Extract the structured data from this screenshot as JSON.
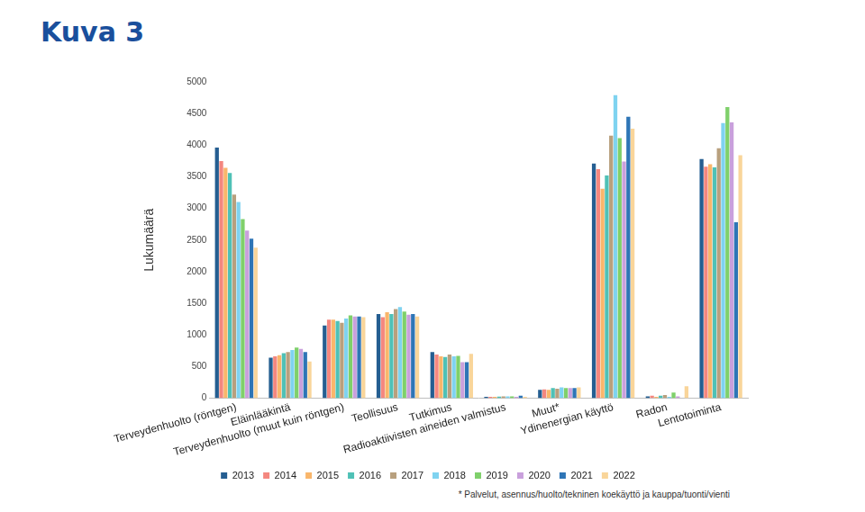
{
  "chart_data": {
    "type": "bar",
    "title": "Kuva 3",
    "y_label": "Lukumäärä",
    "annotation": "* Palvelut, asennus/huolto/tekninen koekäyttö ja kauppa/tuonti/vienti",
    "categories": [
      "Terveydenhuolto (röntgen)",
      "Eläinlääkintä",
      "Terveydenhuolto (muut kuin röntgen)",
      "Teollisuus",
      "Tutkimus",
      "Radioaktiivisten aineiden valmistus",
      "Muut*",
      "Ydinenergian käyttö",
      "Radon",
      "Lentotoiminta"
    ],
    "series": [
      {
        "name": "2013",
        "color": "#255e91",
        "values": [
          3960,
          640,
          1150,
          1330,
          730,
          20,
          130,
          3710,
          30,
          3780
        ]
      },
      {
        "name": "2014",
        "color": "#f4877f",
        "values": [
          3750,
          660,
          1240,
          1280,
          690,
          20,
          140,
          3620,
          40,
          3660
        ]
      },
      {
        "name": "2015",
        "color": "#f9b66b",
        "values": [
          3640,
          680,
          1240,
          1360,
          660,
          20,
          130,
          3310,
          20,
          3700
        ]
      },
      {
        "name": "2016",
        "color": "#4fc1b6",
        "values": [
          3560,
          710,
          1220,
          1330,
          650,
          25,
          160,
          3520,
          40,
          3650
        ]
      },
      {
        "name": "2017",
        "color": "#b8a07e",
        "values": [
          3220,
          730,
          1190,
          1410,
          690,
          30,
          150,
          4150,
          50,
          3950
        ]
      },
      {
        "name": "2018",
        "color": "#7fd3f0",
        "values": [
          3100,
          760,
          1260,
          1440,
          660,
          30,
          170,
          4790,
          20,
          4350
        ]
      },
      {
        "name": "2019",
        "color": "#7fd06b",
        "values": [
          2830,
          800,
          1310,
          1370,
          670,
          30,
          160,
          4110,
          90,
          4600
        ]
      },
      {
        "name": "2020",
        "color": "#c9a0dc",
        "values": [
          2650,
          780,
          1290,
          1320,
          570,
          20,
          160,
          3740,
          30,
          4360
        ]
      },
      {
        "name": "2021",
        "color": "#2e75b6",
        "values": [
          2520,
          730,
          1290,
          1330,
          570,
          40,
          160,
          4450,
          0,
          2780
        ]
      },
      {
        "name": "2022",
        "color": "#f9d59a",
        "values": [
          2380,
          580,
          1280,
          1290,
          700,
          20,
          170,
          4260,
          190,
          3840
        ]
      }
    ],
    "ylim": [
      0,
      5000
    ],
    "yticks": [
      0,
      500,
      1000,
      1500,
      2000,
      2500,
      3000,
      3500,
      4000,
      4500,
      5000
    ],
    "grid": false,
    "legend": "bottom"
  }
}
